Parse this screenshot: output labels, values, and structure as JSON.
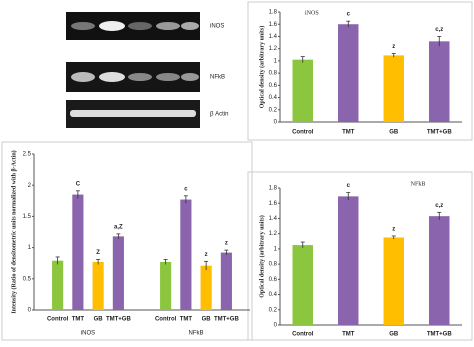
{
  "gel_labels": [
    "iNOS",
    "NFkB",
    "β Actin"
  ],
  "chart_data": [
    {
      "type": "bar",
      "title": "iNOS",
      "y_label": "Optical density (arbitrary units)",
      "categories": [
        "Control",
        "TMT",
        "GB",
        "TMT+GB"
      ],
      "values": [
        1.02,
        1.6,
        1.09,
        1.32
      ],
      "errors": [
        0.05,
        0.05,
        0.03,
        0.08
      ],
      "annotations": [
        null,
        "c",
        "z",
        "c,z"
      ],
      "colors": [
        "#8cc63f",
        "#8a64ad",
        "#ffbf00",
        "#8a64ad"
      ],
      "ylim": [
        0,
        1.8
      ],
      "yticks": [
        0,
        0.2,
        0.4,
        0.6,
        0.8,
        1,
        1.2,
        1.4,
        1.6,
        1.8
      ]
    },
    {
      "type": "bar",
      "title": "NFkB",
      "y_label": "Optical density (arbitrary units)",
      "categories": [
        "Control",
        "TMT",
        "GB",
        "TMT+GB"
      ],
      "values": [
        1.05,
        1.69,
        1.15,
        1.43
      ],
      "errors": [
        0.04,
        0.05,
        0.02,
        0.05
      ],
      "annotations": [
        null,
        "c",
        "z",
        "c,z"
      ],
      "colors": [
        "#8cc63f",
        "#8a64ad",
        "#ffbf00",
        "#8a64ad"
      ],
      "ylim": [
        0,
        1.8
      ],
      "yticks": [
        0,
        0.2,
        0.4,
        0.6,
        0.8,
        1,
        1.2,
        1.4,
        1.6,
        1.8
      ]
    },
    {
      "type": "grouped-bar",
      "y_label": "Intensity (Ratio of densitometric units normalized with β-Actin)",
      "categories": [
        "Control",
        "TMT",
        "GB",
        "TMT+GB"
      ],
      "colors": [
        "#8cc63f",
        "#8a64ad",
        "#ffbf00",
        "#8a64ad"
      ],
      "series": [
        {
          "name": "iNOS",
          "values": [
            0.79,
            1.85,
            0.77,
            1.18
          ],
          "errors": [
            0.06,
            0.06,
            0.04,
            0.04
          ],
          "annotations": [
            null,
            "C",
            "Z",
            "a,Z"
          ]
        },
        {
          "name": "NFkB",
          "values": [
            0.77,
            1.77,
            0.71,
            0.92
          ],
          "errors": [
            0.04,
            0.06,
            0.07,
            0.04
          ],
          "annotations": [
            null,
            "c",
            "z",
            "z"
          ]
        }
      ],
      "ylim": [
        0,
        2.5
      ],
      "yticks": [
        0,
        0.5,
        1,
        1.5,
        2,
        2.5
      ]
    }
  ]
}
